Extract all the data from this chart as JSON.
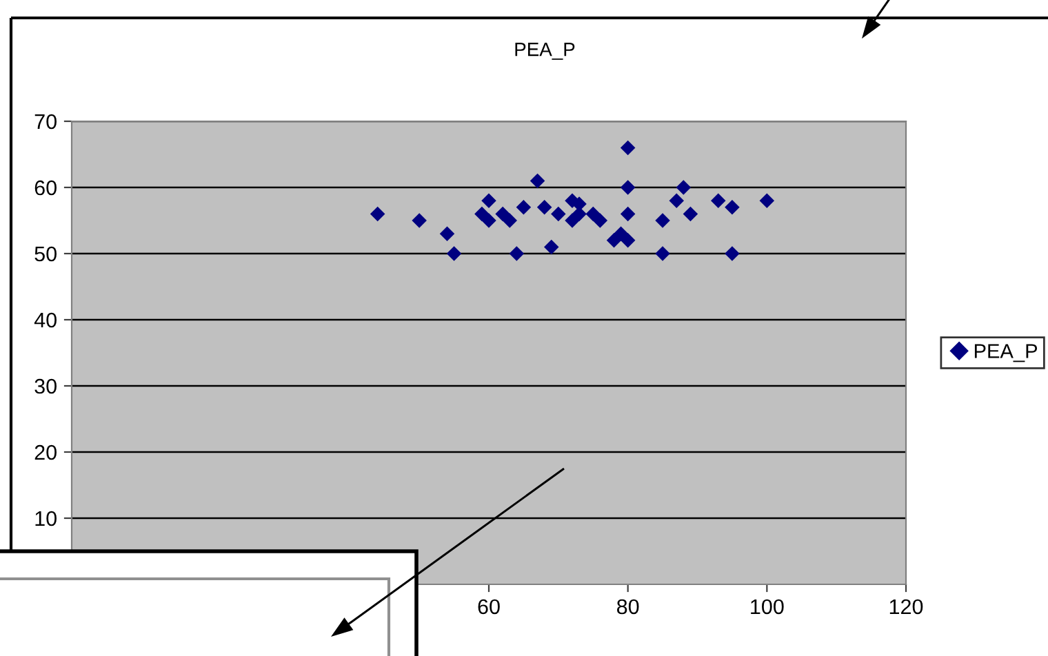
{
  "chart_data": {
    "type": "scatter",
    "title": "PEA_P",
    "x": [
      44,
      50,
      54,
      55,
      59,
      60,
      60,
      62,
      63,
      64,
      65,
      67,
      68,
      69,
      70,
      72,
      72,
      73,
      73,
      75,
      76,
      78,
      79,
      80,
      80,
      80,
      80,
      85,
      85,
      87,
      88,
      89,
      93,
      95,
      95,
      100
    ],
    "series": [
      {
        "name": "PEA_P",
        "color": "#000080",
        "values": [
          56,
          55,
          53,
          50,
          56,
          58,
          55,
          56,
          55,
          50,
          57,
          61,
          57,
          51,
          56,
          58,
          55,
          57.5,
          56,
          56,
          55,
          52,
          53,
          52,
          66,
          60,
          56,
          55,
          50,
          58,
          60,
          56,
          58,
          57,
          50,
          58
        ]
      }
    ],
    "xlim": [
      0,
      120
    ],
    "xticks": [
      60,
      80,
      100,
      120
    ],
    "ylim": [
      0,
      70
    ],
    "yticks": [
      10,
      20,
      30,
      40,
      50,
      60,
      70
    ],
    "grid": "y",
    "legend": "right",
    "marker": "diamond"
  }
}
